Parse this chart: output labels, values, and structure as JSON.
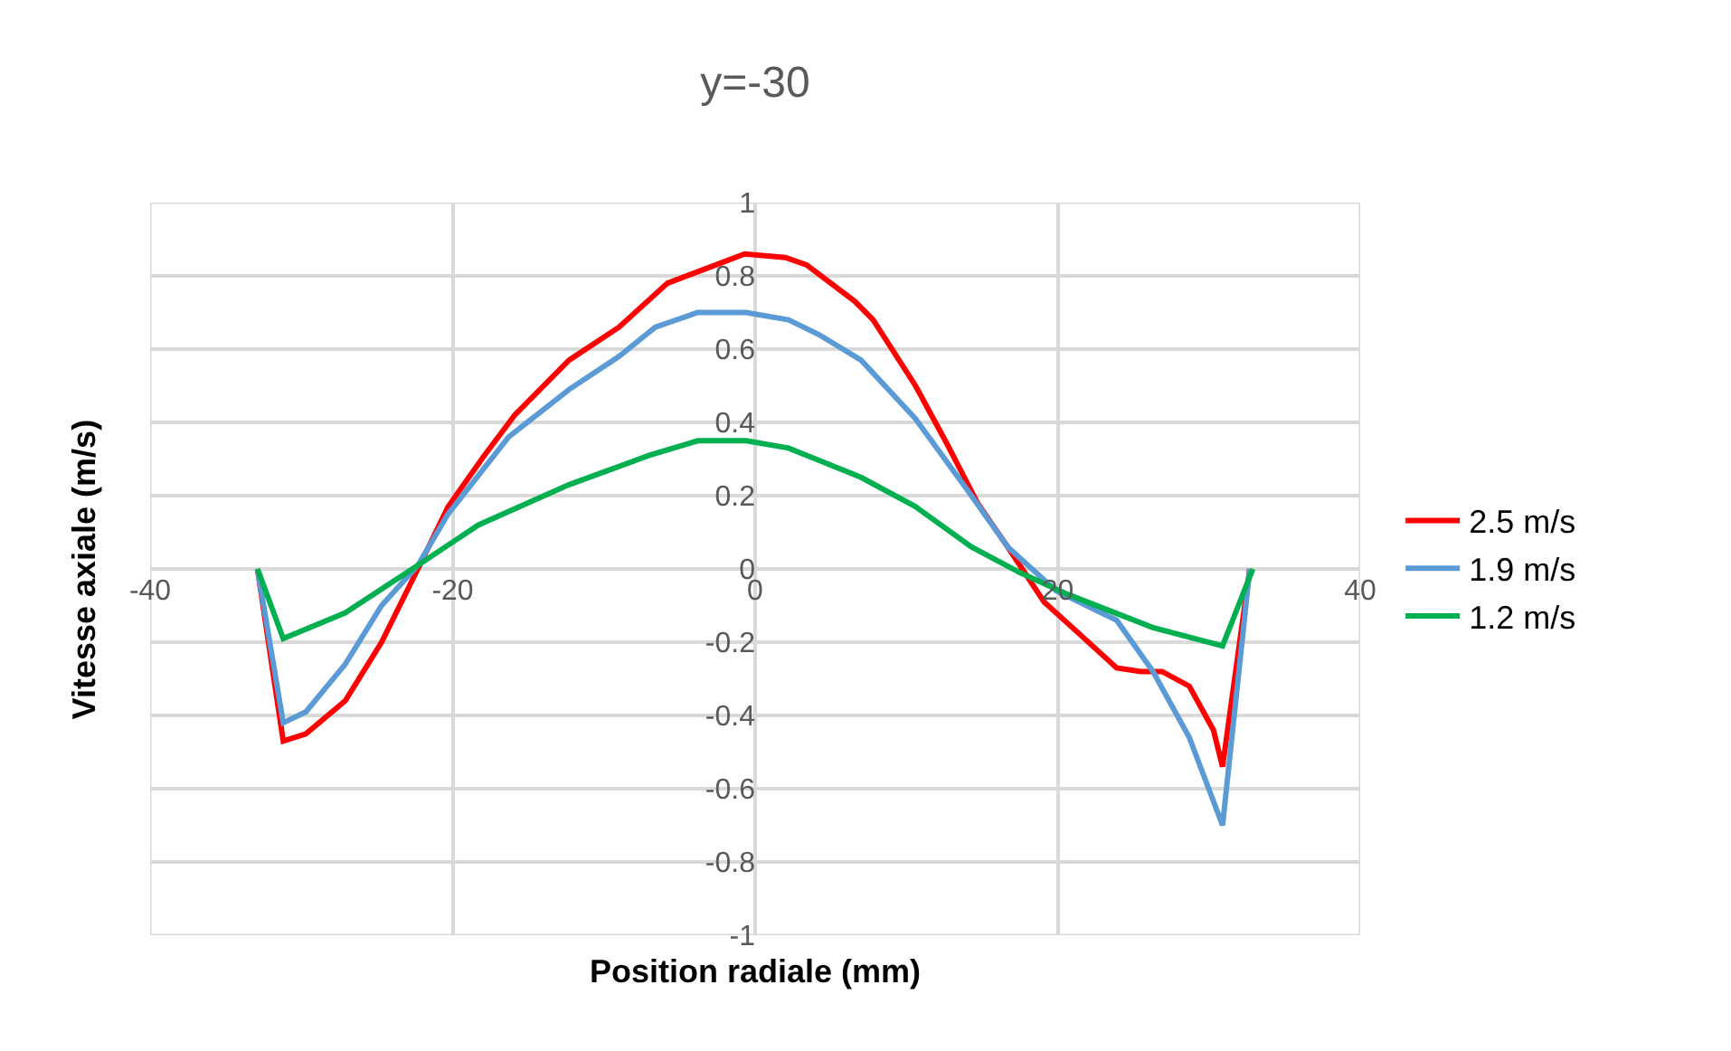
{
  "chart_data": {
    "type": "line",
    "title": "y=-30",
    "xlabel": "Position radiale (mm)",
    "ylabel": "Vitesse axiale (m/s)",
    "xlim": [
      -40,
      40
    ],
    "xticks": [
      -40,
      -20,
      0,
      20,
      40
    ],
    "ylim": [
      -1,
      1
    ],
    "yticks": [
      -1,
      -0.8,
      -0.6,
      -0.4,
      -0.2,
      0,
      0.2,
      0.4,
      0.6,
      0.8,
      1
    ],
    "grid": true,
    "legend": "right",
    "marker": "none",
    "line_style": "solid",
    "series": [
      {
        "name": "2.5 m/s",
        "color": "#ff0000",
        "x": [
          -32.9,
          -31.2,
          -29.7,
          -27.1,
          -24.7,
          -22.3,
          -20.3,
          -17.9,
          -15.9,
          -12.3,
          -9.0,
          -5.8,
          -2.6,
          -0.7,
          2.0,
          3.4,
          6.6,
          7.8,
          10.6,
          12.7,
          14.7,
          16.7,
          19.1,
          21.5,
          23.9,
          25.5,
          26.9,
          28.7,
          30.3,
          30.9,
          32.7
        ],
        "values": [
          0,
          -0.47,
          -0.45,
          -0.36,
          -0.2,
          0,
          0.17,
          0.31,
          0.42,
          0.57,
          0.66,
          0.78,
          0.83,
          0.86,
          0.85,
          0.83,
          0.73,
          0.68,
          0.5,
          0.34,
          0.18,
          0.06,
          -0.09,
          -0.18,
          -0.27,
          -0.28,
          -0.28,
          -0.32,
          -0.44,
          -0.54,
          0
        ]
      },
      {
        "name": "1.9 m/s",
        "color": "#5b9bd5",
        "x": [
          -32.9,
          -31.2,
          -29.7,
          -27.1,
          -24.7,
          -22.3,
          -20.3,
          -16.3,
          -12.3,
          -9.0,
          -6.6,
          -3.8,
          -0.6,
          2.2,
          4.2,
          7.0,
          10.6,
          14.3,
          16.7,
          19.9,
          23.9,
          26.3,
          28.7,
          30.9,
          32.7
        ],
        "values": [
          0,
          -0.42,
          -0.39,
          -0.26,
          -0.1,
          0.01,
          0.15,
          0.36,
          0.49,
          0.58,
          0.66,
          0.7,
          0.7,
          0.68,
          0.64,
          0.57,
          0.41,
          0.2,
          0.06,
          -0.06,
          -0.14,
          -0.28,
          -0.46,
          -0.7,
          0
        ]
      },
      {
        "name": "1.2 m/s",
        "color": "#00b050",
        "x": [
          -32.9,
          -31.2,
          -27.1,
          -22.3,
          -18.3,
          -12.3,
          -7.0,
          -3.8,
          -0.6,
          2.2,
          7.0,
          10.6,
          14.3,
          17.5,
          20.7,
          26.3,
          30.9,
          32.9
        ],
        "values": [
          0,
          -0.19,
          -0.12,
          0.01,
          0.12,
          0.23,
          0.31,
          0.35,
          0.35,
          0.33,
          0.25,
          0.17,
          0.06,
          -0.01,
          -0.07,
          -0.16,
          -0.21,
          0
        ]
      }
    ]
  }
}
